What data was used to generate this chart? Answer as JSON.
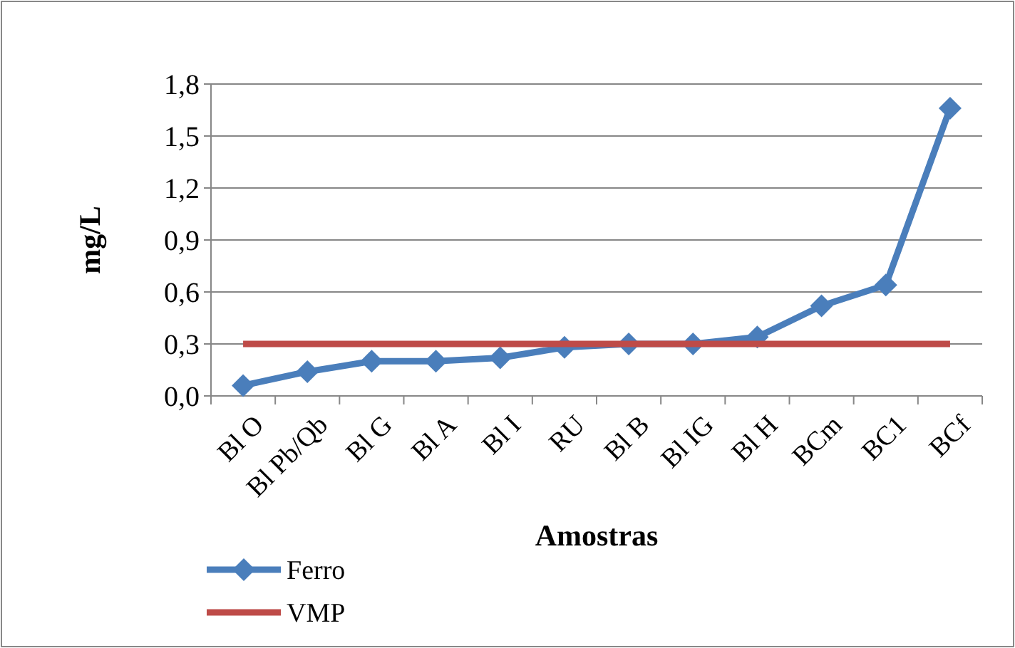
{
  "chart_data": {
    "type": "line",
    "xlabel": "Amostras",
    "ylabel": "mg/L",
    "categories": [
      "Bl O",
      "Bl Pb/Qb",
      "Bl G",
      "Bl A",
      "Bl I",
      "RU",
      "Bl B",
      "Bl IG",
      "Bl H",
      "BCm",
      "BC1",
      "BCf"
    ],
    "series": [
      {
        "name": "Ferro",
        "color": "#4a7ebb",
        "marker": "diamond",
        "values": [
          0.06,
          0.14,
          0.2,
          0.2,
          0.22,
          0.28,
          0.3,
          0.3,
          0.34,
          0.52,
          0.64,
          1.66
        ]
      },
      {
        "name": "VMP",
        "color": "#be4b48",
        "marker": "none",
        "values": [
          0.3,
          0.3,
          0.3,
          0.3,
          0.3,
          0.3,
          0.3,
          0.3,
          0.3,
          0.3,
          0.3,
          0.3
        ]
      }
    ],
    "ylim": [
      0,
      1.8
    ],
    "yticks": [
      {
        "value": 0,
        "label": "0,0"
      },
      {
        "value": 0.3,
        "label": "0,3"
      },
      {
        "value": 0.6,
        "label": "0,6"
      },
      {
        "value": 0.9,
        "label": "0,9"
      },
      {
        "value": 1.2,
        "label": "1,2"
      },
      {
        "value": 1.5,
        "label": "1,5"
      },
      {
        "value": 1.8,
        "label": "1,8"
      }
    ],
    "grid": "y",
    "legend": "bottom left"
  }
}
